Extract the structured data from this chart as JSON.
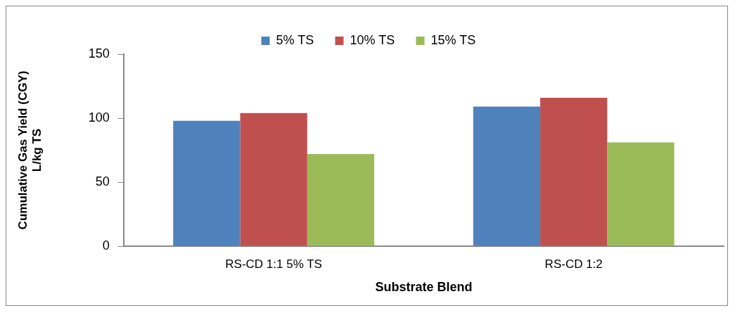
{
  "chart_data": {
    "type": "bar",
    "xlabel": "Substrate Blend",
    "ylabel": "Cumulative Gas Yield (CGY)\nL/kg TS",
    "categories": [
      "RS-CD 1:1 5% TS",
      "RS-CD 1:2"
    ],
    "series": [
      {
        "name": "5% TS",
        "color": "#4f81bd",
        "values": [
          98,
          109
        ]
      },
      {
        "name": "10% TS",
        "color": "#c0504d",
        "values": [
          104,
          116
        ]
      },
      {
        "name": "15% TS",
        "color": "#9bbb59",
        "values": [
          72,
          81
        ]
      }
    ],
    "ylim": [
      0,
      150
    ],
    "yticks": [
      0,
      50,
      100,
      150
    ],
    "grid": false,
    "legend": "top"
  }
}
